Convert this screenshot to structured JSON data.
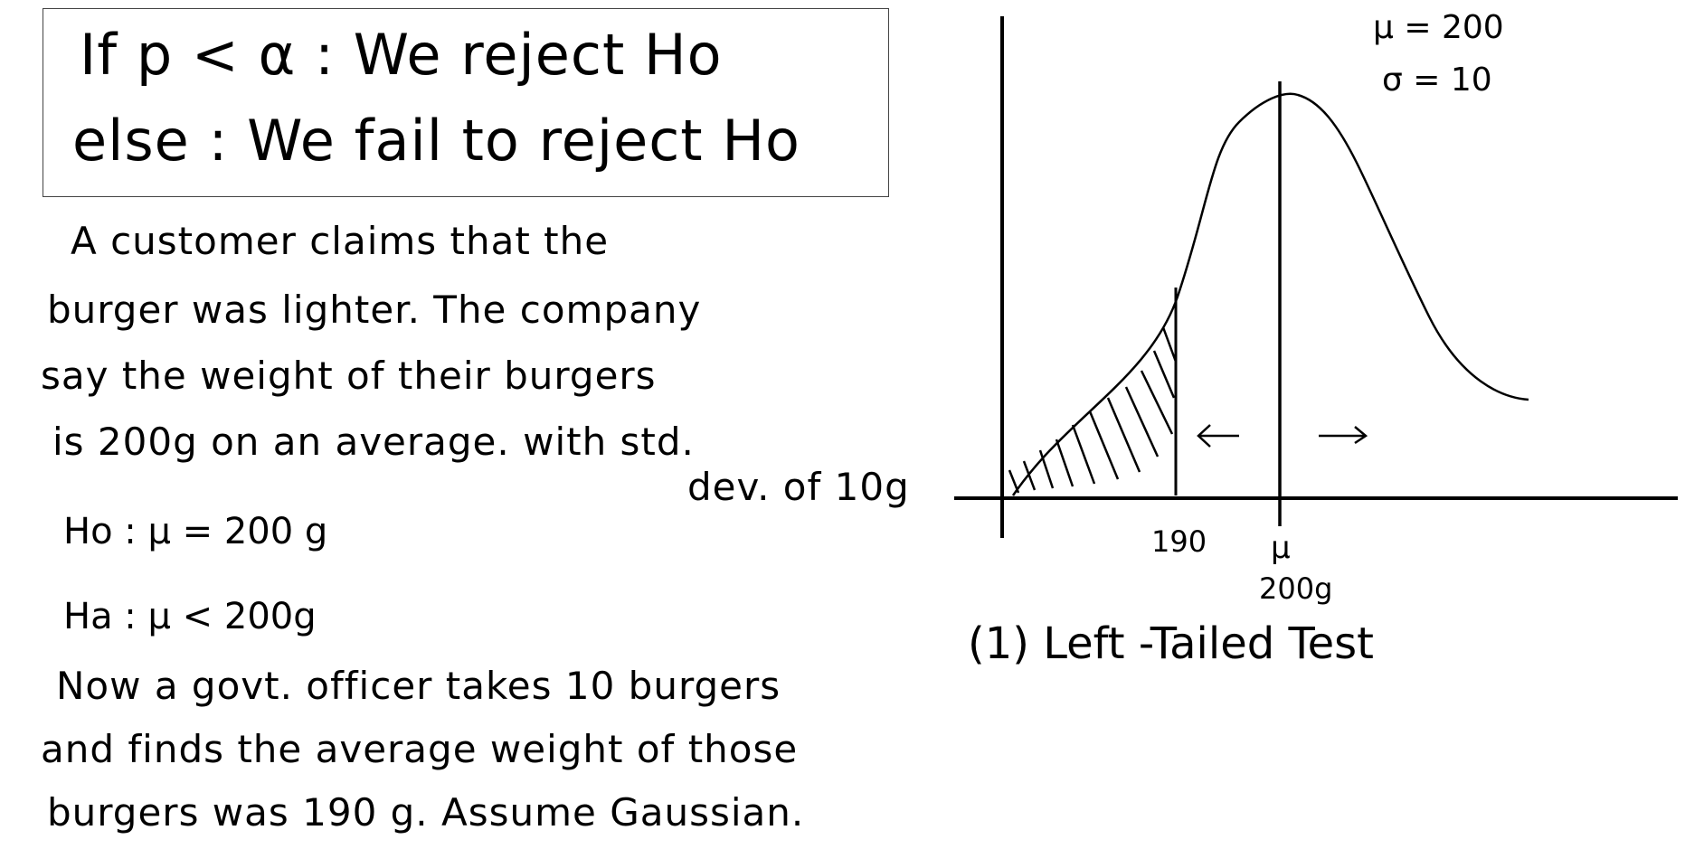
{
  "rule_box": {
    "line1": "If  p < α  :  We reject Ho",
    "line2": "else : We fail to reject Ho"
  },
  "problem": {
    "lines": [
      "A customer  claims  that  the",
      "burger was lighter. The company",
      "say  the  weight  of  their burgers",
      "is   200g   on  an  average. with  std.",
      "dev. of 10g"
    ]
  },
  "hypotheses": {
    "null": "Ho :  μ = 200 g",
    "alt": "Ha :  μ < 200g"
  },
  "sample_text": {
    "lines": [
      "Now a  govt. officer  takes  10  burgers",
      "and finds the average weight of those",
      "burgers  was  190 g.  Assume  Gaussian."
    ]
  },
  "diagram": {
    "param_mu": "μ = 200",
    "param_sigma": "σ = 10",
    "critical_label": "190",
    "mean_symbol": "μ",
    "mean_value": "200g",
    "test_label": "(1) Left -Tailed  Test"
  }
}
